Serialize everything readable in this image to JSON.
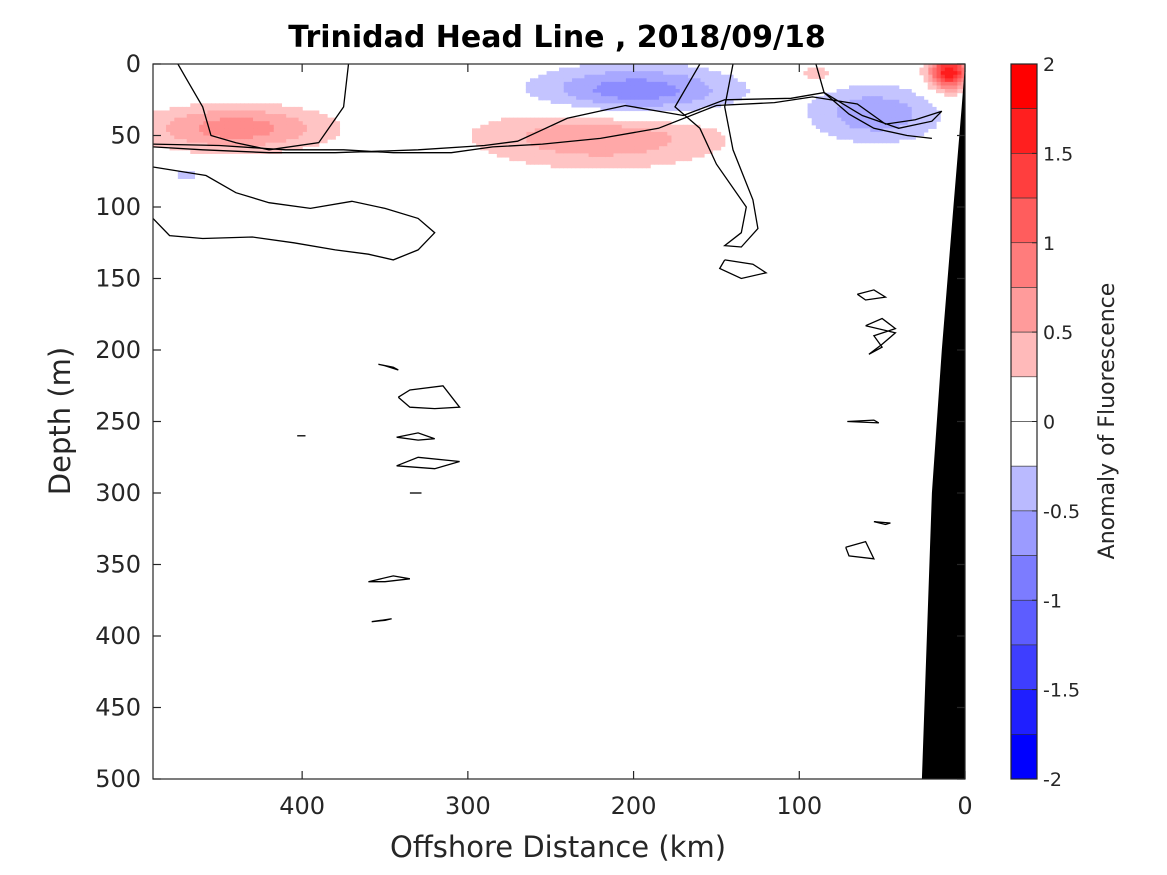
{
  "chart_data": {
    "type": "heatmap",
    "title": "Trinidad Head Line , 2018/09/18",
    "xlabel": "Offshore Distance (km)",
    "ylabel": "Depth (m)",
    "xlim": [
      490,
      0
    ],
    "ylim": [
      0,
      500
    ],
    "x_reversed": true,
    "y_reversed": true,
    "xticks": [
      400,
      300,
      200,
      100,
      0
    ],
    "yticks": [
      0,
      50,
      100,
      150,
      200,
      250,
      300,
      350,
      400,
      450,
      500
    ],
    "grid": false,
    "colorbar": {
      "label": "Anomaly of Fluorescence",
      "range": [
        -2,
        2
      ],
      "step": 0.25,
      "ticks": [
        2,
        1.5,
        1,
        0.5,
        0,
        -0.5,
        -1,
        -1.5,
        -2
      ],
      "tick_labels": [
        "2",
        "1.5",
        "1",
        "0.5",
        "0",
        "-0.5",
        "-1",
        "-1.5",
        "-2"
      ],
      "positive_color": "#ff0000",
      "negative_color": "#0000ff"
    },
    "anomaly_patches": [
      {
        "name": "offshore-high",
        "x_center": 440,
        "depth_center": 45,
        "x_halfwidth": 55,
        "depth_halfwidth": 16,
        "peak": 0.9
      },
      {
        "name": "mid-high",
        "x_center": 220,
        "depth_center": 50,
        "x_halfwidth": 75,
        "depth_halfwidth": 22,
        "peak": 0.75
      },
      {
        "name": "mid-low",
        "x_center": 200,
        "depth_center": 20,
        "x_halfwidth": 60,
        "depth_halfwidth": 18,
        "peak": -1.0
      },
      {
        "name": "nearshore-low",
        "x_center": 55,
        "depth_center": 35,
        "x_halfwidth": 40,
        "depth_halfwidth": 20,
        "peak": -0.7
      },
      {
        "name": "small-high",
        "x_center": 90,
        "depth_center": 7,
        "x_halfwidth": 14,
        "depth_halfwidth": 8,
        "peak": 0.4
      },
      {
        "name": "coastal-high",
        "x_center": 10,
        "depth_center": 6,
        "x_halfwidth": 12,
        "depth_halfwidth": 12,
        "peak": 2.0
      },
      {
        "name": "small-low",
        "x_center": 470,
        "depth_center": 77,
        "x_halfwidth": 12,
        "depth_halfwidth": 6,
        "peak": -0.35
      }
    ],
    "zero_contours": [
      [
        [
          490,
          58
        ],
        [
          460,
          60
        ],
        [
          420,
          62
        ],
        [
          380,
          62
        ],
        [
          330,
          60
        ],
        [
          290,
          57
        ],
        [
          270,
          54
        ],
        [
          255,
          46
        ],
        [
          240,
          38
        ],
        [
          205,
          29
        ],
        [
          170,
          36
        ],
        [
          145,
          25
        ],
        [
          105,
          24
        ],
        [
          85,
          20
        ],
        [
          62,
          36
        ],
        [
          40,
          45
        ],
        [
          20,
          40
        ],
        [
          14,
          33
        ],
        [
          30,
          39
        ],
        [
          48,
          42
        ],
        [
          65,
          28
        ],
        [
          92,
          23
        ],
        [
          115,
          27
        ],
        [
          150,
          29
        ],
        [
          185,
          45
        ],
        [
          220,
          52
        ],
        [
          255,
          56
        ],
        [
          285,
          58
        ],
        [
          310,
          62
        ],
        [
          345,
          62
        ],
        [
          375,
          60
        ],
        [
          410,
          60
        ],
        [
          450,
          57
        ],
        [
          490,
          56
        ]
      ],
      [
        [
          490,
          108
        ],
        [
          480,
          120
        ],
        [
          460,
          122
        ],
        [
          430,
          121
        ],
        [
          405,
          125
        ],
        [
          380,
          130
        ],
        [
          360,
          133
        ],
        [
          345,
          137
        ],
        [
          330,
          130
        ],
        [
          320,
          118
        ],
        [
          330,
          108
        ],
        [
          350,
          101
        ],
        [
          370,
          96
        ],
        [
          395,
          101
        ],
        [
          420,
          97
        ],
        [
          440,
          90
        ],
        [
          458,
          78
        ],
        [
          490,
          72
        ]
      ],
      [
        [
          372,
          0
        ],
        [
          375,
          30
        ],
        [
          390,
          55
        ],
        [
          420,
          60
        ],
        [
          440,
          55
        ],
        [
          455,
          50
        ],
        [
          460,
          30
        ],
        [
          470,
          10
        ],
        [
          475,
          0
        ]
      ],
      [
        [
          140,
          0
        ],
        [
          145,
          30
        ],
        [
          140,
          60
        ],
        [
          128,
          95
        ],
        [
          125,
          115
        ],
        [
          135,
          128
        ],
        [
          145,
          127
        ],
        [
          135,
          118
        ],
        [
          132,
          100
        ],
        [
          150,
          70
        ],
        [
          160,
          45
        ],
        [
          175,
          30
        ],
        [
          165,
          10
        ],
        [
          160,
          0
        ]
      ],
      [
        [
          90,
          0
        ],
        [
          85,
          20
        ],
        [
          70,
          35
        ],
        [
          55,
          45
        ],
        [
          35,
          50
        ],
        [
          20,
          52
        ]
      ],
      [
        [
          145,
          137
        ],
        [
          128,
          140
        ],
        [
          120,
          146
        ],
        [
          135,
          150
        ],
        [
          148,
          143
        ],
        [
          145,
          137
        ]
      ],
      [
        [
          354,
          210
        ],
        [
          345,
          212
        ],
        [
          342,
          214
        ],
        [
          350,
          211
        ],
        [
          354,
          210
        ]
      ],
      [
        [
          342,
          233
        ],
        [
          335,
          228
        ],
        [
          315,
          225
        ],
        [
          305,
          240
        ],
        [
          320,
          241
        ],
        [
          335,
          240
        ],
        [
          342,
          233
        ]
      ],
      [
        [
          343,
          261
        ],
        [
          330,
          258
        ],
        [
          320,
          262
        ],
        [
          330,
          263
        ],
        [
          343,
          261
        ]
      ],
      [
        [
          343,
          281
        ],
        [
          330,
          275
        ],
        [
          305,
          278
        ],
        [
          320,
          283
        ],
        [
          343,
          281
        ]
      ],
      [
        [
          71,
          250
        ],
        [
          55,
          249
        ],
        [
          52,
          251
        ],
        [
          71,
          250
        ]
      ],
      [
        [
          65,
          161
        ],
        [
          55,
          158
        ],
        [
          48,
          163
        ],
        [
          60,
          165
        ],
        [
          65,
          161
        ]
      ],
      [
        [
          60,
          183
        ],
        [
          50,
          178
        ],
        [
          42,
          185
        ],
        [
          55,
          190
        ],
        [
          50,
          198
        ],
        [
          58,
          203
        ],
        [
          50,
          196
        ],
        [
          42,
          188
        ],
        [
          60,
          183
        ]
      ],
      [
        [
          72,
          338
        ],
        [
          60,
          334
        ],
        [
          55,
          346
        ],
        [
          70,
          344
        ],
        [
          72,
          338
        ]
      ],
      [
        [
          55,
          320
        ],
        [
          48,
          322
        ],
        [
          45,
          321
        ],
        [
          55,
          320
        ]
      ],
      [
        [
          360,
          362
        ],
        [
          345,
          358
        ],
        [
          335,
          360
        ],
        [
          350,
          362
        ],
        [
          360,
          362
        ]
      ],
      [
        [
          358,
          390
        ],
        [
          350,
          389
        ],
        [
          346,
          388
        ],
        [
          358,
          390
        ]
      ],
      [
        [
          403,
          260
        ],
        [
          398,
          260
        ]
      ],
      [
        [
          335,
          300
        ],
        [
          328,
          300
        ]
      ]
    ],
    "bathymetry": [
      [
        26,
        500
      ],
      [
        20,
        300
      ],
      [
        14,
        200
      ],
      [
        7,
        100
      ],
      [
        2,
        30
      ],
      [
        0,
        0
      ],
      [
        0,
        500
      ]
    ]
  }
}
